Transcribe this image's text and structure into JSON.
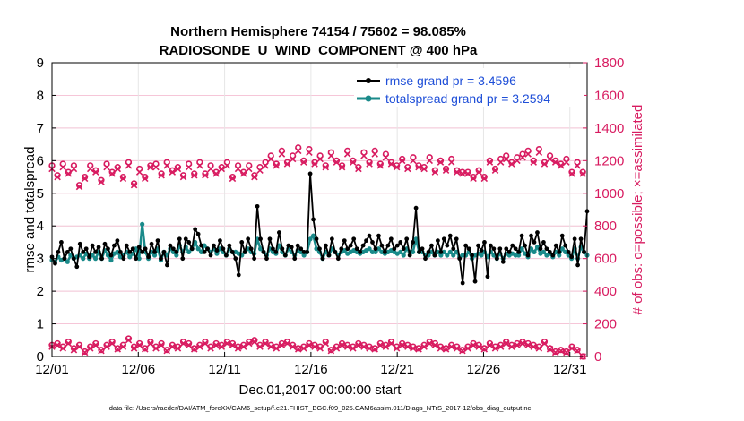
{
  "chart_data": {
    "type": "line",
    "title": "Northern Hemisphere 74154 / 75602 = 98.085%",
    "subtitle": "RADIOSONDE_U_WIND_COMPONENT @ 400 hPa",
    "xlabel": "Dec.01,2017 00:00:00 start",
    "ylabel": "rmse and totalspread",
    "y2label": "# of obs: o=possible; ×=assimilated",
    "footnote": "data file: /Users/raeder/DAI/ATM_forcXX/CAM6_setup/f.e21.FHIST_BGC.f09_025.CAM6assim.011/Diags_NTrS_2017-12/obs_diag_output.nc",
    "xlim": [
      0,
      31
    ],
    "ylim": [
      0,
      9
    ],
    "y2lim": [
      0,
      1800
    ],
    "xticks": [
      0,
      5,
      10,
      15,
      20,
      25,
      30
    ],
    "xtick_labels": [
      "12/01",
      "12/06",
      "12/11",
      "12/16",
      "12/21",
      "12/26",
      "12/31"
    ],
    "yticks": [
      "0",
      "1",
      "2",
      "3",
      "4",
      "5",
      "6",
      "7",
      "8",
      "9"
    ],
    "y2ticks": [
      "0",
      "200",
      "400",
      "600",
      "800",
      "1000",
      "1200",
      "1400",
      "1600",
      "1800"
    ],
    "legend": [
      "rmse grand pr = 3.4596",
      "totalspread grand pr = 3.2594"
    ],
    "colors": {
      "rmse": "#000000",
      "spread": "#1a8a8a",
      "obs": "#d81b60"
    },
    "series": [
      {
        "name": "rmse",
        "values": [
          3.05,
          2.85,
          3.2,
          3.5,
          3.0,
          3.2,
          3.3,
          3.0,
          2.75,
          3.45,
          3.2,
          3.3,
          3.05,
          3.4,
          3.2,
          3.35,
          3.0,
          3.45,
          3.3,
          3.1,
          3.4,
          3.55,
          3.2,
          3.0,
          3.4,
          3.2,
          3.3,
          3.0,
          3.35,
          3.2,
          3.3,
          3.05,
          3.45,
          3.2,
          3.55,
          3.0,
          3.2,
          2.8,
          3.4,
          3.3,
          3.2,
          3.6,
          3.0,
          3.6,
          3.5,
          3.3,
          3.9,
          3.75,
          3.4,
          3.2,
          3.3,
          3.1,
          3.4,
          3.25,
          3.55,
          3.3,
          3.1,
          3.4,
          3.2,
          3.0,
          2.5,
          3.5,
          3.2,
          3.6,
          3.3,
          3.0,
          4.6,
          3.6,
          3.2,
          3.0,
          3.6,
          3.3,
          3.2,
          3.8,
          3.3,
          3.1,
          3.4,
          3.35,
          3.0,
          3.4,
          3.3,
          3.2,
          3.2,
          5.6,
          4.2,
          3.6,
          3.3,
          3.0,
          3.4,
          3.1,
          3.6,
          3.2,
          3.0,
          3.3,
          3.55,
          3.3,
          3.4,
          3.6,
          3.3,
          3.2,
          3.4,
          3.55,
          3.7,
          3.5,
          3.3,
          3.7,
          3.4,
          3.2,
          3.4,
          3.6,
          3.3,
          3.4,
          3.5,
          3.3,
          3.6,
          3.1,
          3.5,
          4.55,
          3.2,
          3.3,
          3.0,
          3.2,
          3.4,
          3.1,
          3.55,
          3.2,
          3.6,
          3.4,
          3.7,
          3.3,
          3.6,
          3.0,
          2.25,
          3.4,
          3.3,
          3.1,
          2.3,
          3.4,
          3.25,
          3.5,
          2.45,
          3.4,
          3.3,
          3.0,
          3.3,
          2.9,
          3.3,
          3.2,
          3.4,
          3.3,
          3.2,
          3.7,
          3.4,
          3.1,
          3.7,
          3.5,
          3.8,
          3.3,
          3.5,
          3.3,
          3.2,
          3.1,
          3.4,
          3.2,
          3.7,
          3.4,
          3.2,
          3.05,
          3.6,
          2.8,
          3.6,
          3.2,
          4.45
        ]
      },
      {
        "name": "totalspread",
        "values": [
          2.95,
          2.9,
          3.05,
          2.95,
          3.0,
          2.9,
          3.1,
          3.0,
          3.05,
          3.1,
          3.0,
          3.15,
          3.0,
          3.1,
          3.0,
          3.2,
          3.0,
          3.25,
          3.1,
          2.95,
          3.15,
          3.2,
          3.05,
          3.1,
          3.2,
          3.05,
          3.15,
          3.3,
          3.0,
          4.05,
          3.2,
          3.0,
          3.2,
          3.1,
          3.3,
          2.95,
          3.2,
          3.1,
          3.3,
          3.2,
          3.1,
          3.4,
          3.2,
          3.35,
          3.2,
          3.3,
          3.5,
          3.3,
          3.2,
          3.4,
          3.3,
          3.2,
          3.3,
          3.15,
          3.3,
          3.2,
          3.1,
          3.3,
          3.2,
          3.2,
          3.15,
          3.1,
          3.2,
          3.3,
          3.2,
          3.15,
          3.6,
          3.3,
          3.2,
          3.1,
          3.3,
          3.2,
          3.15,
          3.4,
          3.2,
          3.1,
          3.3,
          3.2,
          3.1,
          3.25,
          3.2,
          3.1,
          3.2,
          3.6,
          3.7,
          3.3,
          3.2,
          3.0,
          3.2,
          3.1,
          3.3,
          3.2,
          3.1,
          3.2,
          3.25,
          3.15,
          3.2,
          3.25,
          3.2,
          3.15,
          3.2,
          3.25,
          3.3,
          3.2,
          3.2,
          3.3,
          3.2,
          3.15,
          3.2,
          3.25,
          3.2,
          3.15,
          3.2,
          3.1,
          3.3,
          3.2,
          3.2,
          3.6,
          3.2,
          3.2,
          3.1,
          3.1,
          3.2,
          3.1,
          3.2,
          3.1,
          3.2,
          3.1,
          3.2,
          3.1,
          3.2,
          3.05,
          3.1,
          3.1,
          3.2,
          3.0,
          3.1,
          3.15,
          3.1,
          3.2,
          3.05,
          3.2,
          3.1,
          3.0,
          3.15,
          3.0,
          3.15,
          3.1,
          3.15,
          3.1,
          3.1,
          3.3,
          3.15,
          3.05,
          3.3,
          3.2,
          3.35,
          3.15,
          3.2,
          3.1,
          3.15,
          3.05,
          3.2,
          3.1,
          3.3,
          3.2,
          3.1,
          3.0,
          3.3,
          3.0,
          3.35,
          3.2,
          3.1
        ]
      },
      {
        "name": "obs_possible",
        "values": [
          1170,
          1110,
          1180,
          1130,
          1170,
          1050,
          1100,
          1170,
          1140,
          1080,
          1180,
          1130,
          1160,
          1100,
          1190,
          1060,
          1150,
          1100,
          1170,
          1180,
          1120,
          1190,
          1140,
          1160,
          1110,
          1180,
          1120,
          1190,
          1120,
          1170,
          1130,
          1160,
          1190,
          1100,
          1170,
          1130,
          1170,
          1110,
          1160,
          1190,
          1230,
          1180,
          1260,
          1190,
          1230,
          1280,
          1200,
          1270,
          1190,
          1230,
          1170,
          1250,
          1200,
          1170,
          1260,
          1200,
          1160,
          1250,
          1190,
          1260,
          1180,
          1240,
          1190,
          1170,
          1210,
          1160,
          1220,
          1170,
          1160,
          1220,
          1140,
          1200,
          1150,
          1210,
          1140,
          1130,
          1130,
          1100,
          1140,
          1100,
          1200,
          1150,
          1210,
          1230,
          1190,
          1220,
          1240,
          1260,
          1200,
          1270,
          1190,
          1230,
          1200,
          1180,
          1210,
          1130,
          1190,
          1130
        ]
      },
      {
        "name": "obs_assimilated",
        "values": [
          1150,
          1100,
          1160,
          1120,
          1150,
          1040,
          1090,
          1150,
          1130,
          1070,
          1160,
          1120,
          1150,
          1090,
          1170,
          1050,
          1130,
          1090,
          1160,
          1160,
          1110,
          1170,
          1130,
          1150,
          1100,
          1160,
          1110,
          1170,
          1110,
          1150,
          1120,
          1150,
          1170,
          1090,
          1150,
          1120,
          1150,
          1100,
          1140,
          1170,
          1210,
          1170,
          1240,
          1180,
          1210,
          1260,
          1190,
          1250,
          1180,
          1210,
          1160,
          1230,
          1190,
          1160,
          1240,
          1190,
          1150,
          1230,
          1180,
          1240,
          1170,
          1220,
          1180,
          1160,
          1200,
          1150,
          1200,
          1160,
          1150,
          1200,
          1130,
          1190,
          1140,
          1190,
          1130,
          1120,
          1120,
          1090,
          1130,
          1090,
          1190,
          1140,
          1190,
          1210,
          1180,
          1200,
          1220,
          1240,
          1190,
          1250,
          1180,
          1210,
          1190,
          1170,
          1190,
          1120,
          1170,
          1120
        ]
      },
      {
        "name": "obs_low_possible",
        "values": [
          70,
          80,
          60,
          90,
          50,
          70,
          30,
          60,
          80,
          40,
          70,
          90,
          50,
          70,
          110,
          60,
          80,
          50,
          90,
          60,
          80,
          40,
          70,
          60,
          90,
          80,
          50,
          70,
          90,
          60,
          80,
          70,
          90,
          80,
          60,
          70,
          90,
          100,
          70,
          90,
          70,
          60,
          80,
          90,
          70,
          50,
          60,
          80,
          70,
          60,
          90,
          40,
          60,
          80,
          70,
          60,
          80,
          70,
          60,
          50,
          80,
          70,
          90,
          60,
          80,
          70,
          60,
          50,
          70,
          90,
          80,
          60,
          50,
          70,
          60,
          40,
          60,
          80,
          70,
          50,
          80,
          60,
          70,
          90,
          70,
          80,
          90,
          80,
          70,
          60,
          90,
          50,
          30,
          40,
          30,
          60,
          40,
          0
        ]
      },
      {
        "name": "obs_low_assimilated",
        "values": [
          60,
          70,
          50,
          80,
          40,
          60,
          25,
          50,
          70,
          35,
          60,
          80,
          45,
          60,
          100,
          50,
          70,
          45,
          80,
          50,
          70,
          35,
          60,
          50,
          80,
          70,
          45,
          60,
          80,
          50,
          70,
          60,
          80,
          70,
          50,
          60,
          80,
          90,
          60,
          80,
          60,
          50,
          70,
          80,
          60,
          45,
          50,
          70,
          60,
          50,
          80,
          35,
          50,
          70,
          60,
          50,
          70,
          60,
          50,
          45,
          70,
          60,
          80,
          50,
          70,
          60,
          50,
          45,
          60,
          80,
          70,
          50,
          45,
          60,
          50,
          35,
          50,
          70,
          60,
          45,
          70,
          50,
          60,
          80,
          60,
          70,
          80,
          70,
          60,
          50,
          80,
          45,
          25,
          35,
          25,
          50,
          35,
          0
        ]
      }
    ]
  }
}
